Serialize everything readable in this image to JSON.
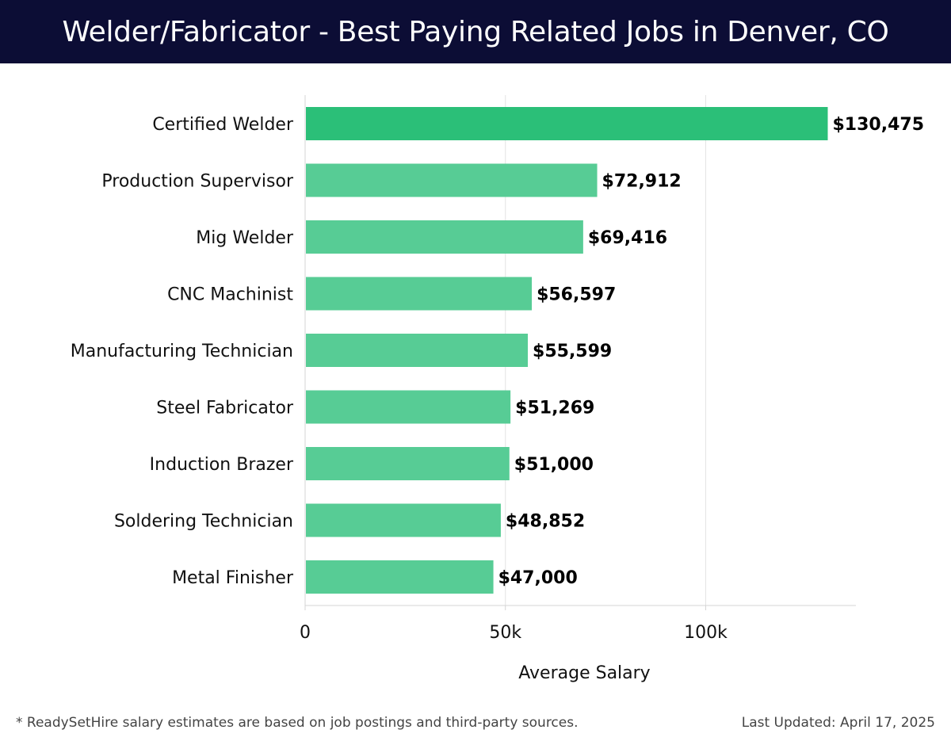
{
  "header": {
    "title": "Welder/Fabricator - Best Paying Related Jobs in Denver, CO"
  },
  "chart_data": {
    "type": "bar",
    "orientation": "horizontal",
    "title": "Welder/Fabricator - Best Paying Related Jobs in Denver, CO",
    "xlabel": "Average Salary",
    "ylabel": "",
    "categories": [
      "Certified Welder",
      "Production Supervisor",
      "Mig Welder",
      "CNC Machinist",
      "Manufacturing Technician",
      "Steel Fabricator",
      "Induction Brazer",
      "Soldering Technician",
      "Metal Finisher"
    ],
    "values": [
      130475,
      72912,
      69416,
      56597,
      55599,
      51269,
      51000,
      48852,
      47000
    ],
    "value_labels": [
      "$130,475",
      "$72,912",
      "$69,416",
      "$56,597",
      "$55,599",
      "$51,269",
      "$51,000",
      "$48,852",
      "$47,000"
    ],
    "xlim": [
      0,
      137500
    ],
    "xticks": [
      0,
      50000,
      100000
    ],
    "xtick_labels": [
      "0",
      "50k",
      "100k"
    ],
    "grid": "vertical",
    "colors": {
      "highlight": "#2bbf78",
      "bar": "#57cc95"
    }
  },
  "footer": {
    "note": "* ReadySetHire salary estimates are based on job postings and third-party sources.",
    "updated": "Last Updated: April 17, 2025"
  }
}
